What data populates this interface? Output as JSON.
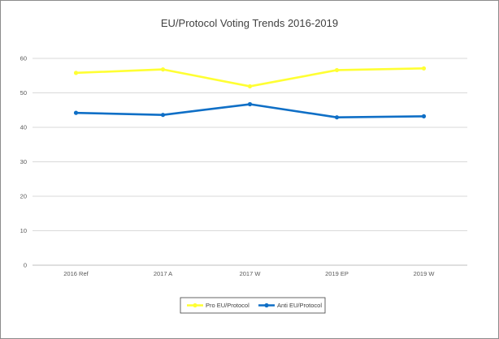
{
  "chart_data": {
    "type": "line",
    "title": "EU/Protocol Voting Trends 2016-2019",
    "categories": [
      "2016 Ref",
      "2017 A",
      "2017 W",
      "2019 EP",
      "2019 W"
    ],
    "series": [
      {
        "name": "Pro EU/Protocol",
        "values": [
          55.8,
          56.8,
          51.9,
          56.6,
          57.1
        ],
        "color": "#ffff33"
      },
      {
        "name": "Anti EU/Protocol",
        "values": [
          44.2,
          43.6,
          46.7,
          42.9,
          43.2
        ],
        "color": "#0f6fc6"
      }
    ],
    "ylim": [
      0,
      60
    ],
    "yticks": [
      0,
      10,
      20,
      30,
      40,
      50,
      60
    ],
    "grid": true,
    "legend_position": "bottom"
  }
}
